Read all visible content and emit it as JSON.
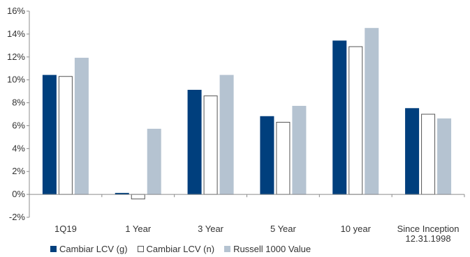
{
  "chart_data": {
    "type": "bar",
    "categories": [
      "1Q19",
      "1 Year",
      "3 Year",
      "5 Year",
      "10 year",
      "Since Inception\n12.31.1998"
    ],
    "series": [
      {
        "name": "Cambiar LCV (g)",
        "values": [
          10.4,
          0.1,
          9.1,
          6.8,
          13.4,
          7.5
        ],
        "fill": "#003f7d",
        "stroke": "#003f7d"
      },
      {
        "name": "Cambiar LCV (n)",
        "values": [
          10.3,
          -0.4,
          8.6,
          6.3,
          12.9,
          7.0
        ],
        "fill": "#ffffff",
        "stroke": "#555555"
      },
      {
        "name": "Russell 1000 Value",
        "values": [
          11.9,
          5.7,
          10.4,
          7.7,
          14.5,
          6.6
        ],
        "fill": "#b5c3d1",
        "stroke": "#b5c3d1"
      }
    ],
    "ylim": [
      -2,
      16
    ],
    "yticks": [
      -2,
      0,
      2,
      4,
      6,
      8,
      10,
      12,
      14,
      16
    ],
    "ytick_labels": [
      "-2%",
      "0%",
      "2%",
      "4%",
      "6%",
      "8%",
      "10%",
      "12%",
      "14%",
      "16%"
    ],
    "grid": false,
    "legend_position": "bottom-left",
    "colors": {
      "axis": "#8c8c8c",
      "text": "#333333"
    }
  }
}
